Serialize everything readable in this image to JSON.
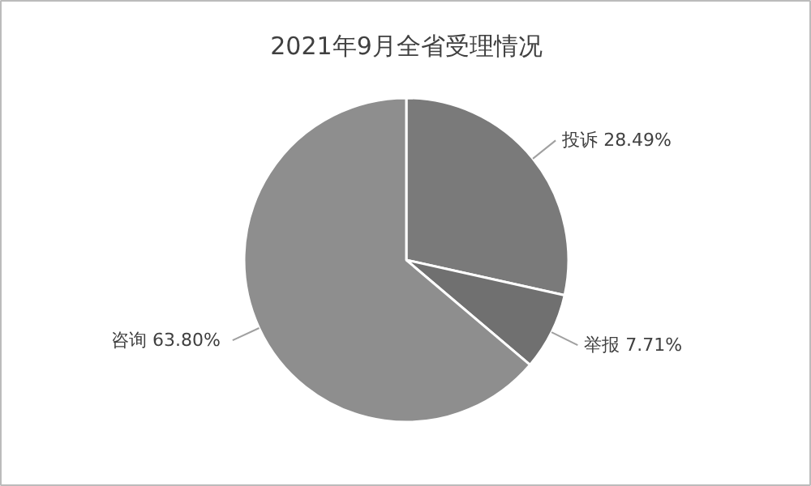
{
  "chart_data": {
    "type": "pie",
    "title": "2021年9月全省受理情况",
    "categories": [
      "投诉",
      "举报",
      "咨询"
    ],
    "values": [
      28.49,
      7.71,
      63.8
    ],
    "value_labels": [
      "28.49%",
      "7.71%",
      "63.80%"
    ],
    "colors": [
      "#7a7a7a",
      "#707070",
      "#8e8e8e"
    ]
  }
}
